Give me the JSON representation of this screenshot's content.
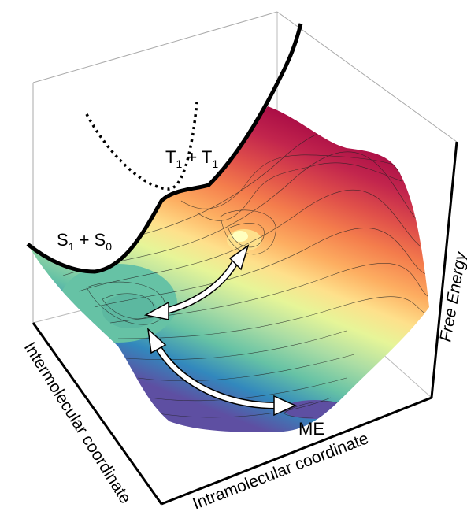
{
  "labels": {
    "triplet_pair": [
      "T",
      "1",
      " + T",
      "1"
    ],
    "singlet_pair": [
      "S",
      "1",
      " + S",
      "0"
    ],
    "minimum": "ME"
  },
  "axes": {
    "x": "Intermolecular coordinate",
    "y": "Intramolecular coordinate",
    "z": "Free Energy"
  }
}
